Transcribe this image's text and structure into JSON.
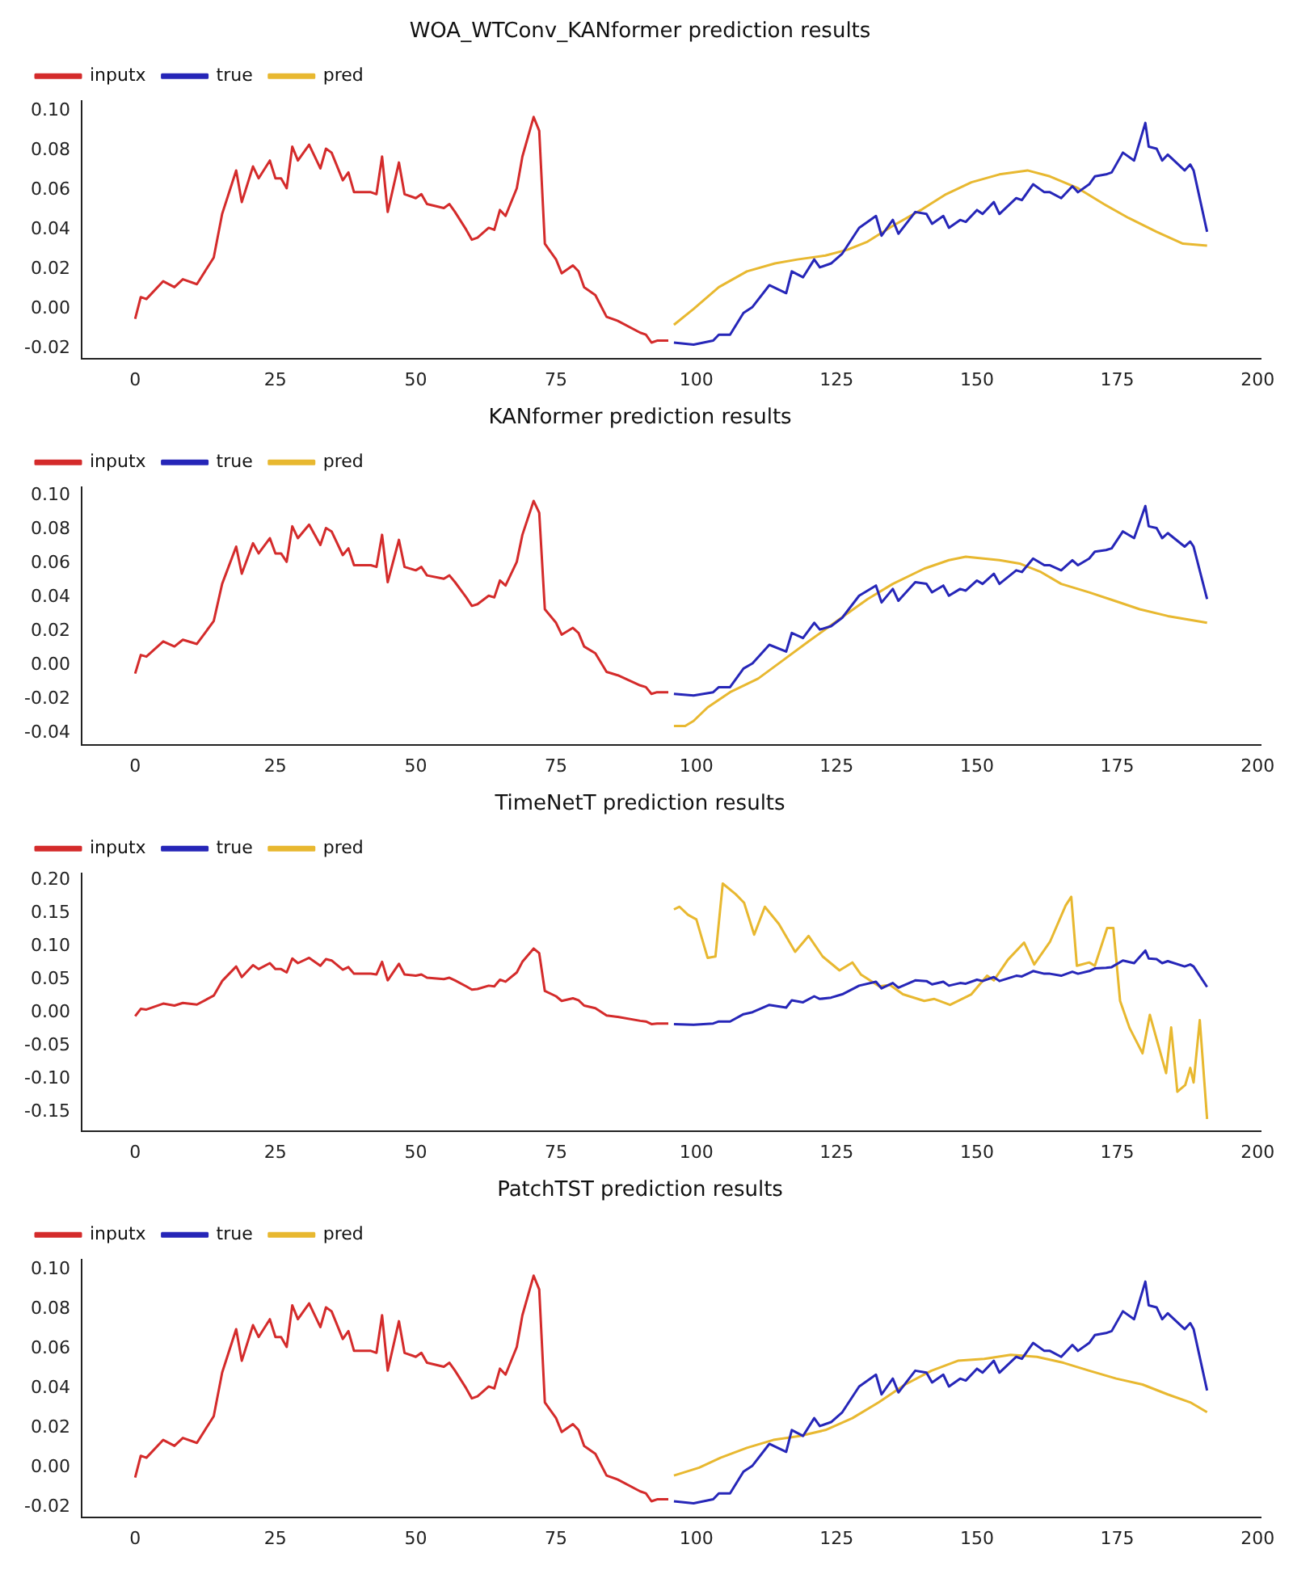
{
  "chart_data": [
    {
      "type": "line",
      "title": "WOA_WTConv_KANformer prediction results",
      "legend": "top left",
      "xlim": [
        -9.55,
        200.55
      ],
      "xticks": [
        0,
        25,
        50,
        75,
        100,
        125,
        150,
        175,
        200
      ],
      "ylim": [
        -0.025,
        0.105
      ],
      "yticks": [
        {
          "value": -0.02,
          "label": "-0.02"
        },
        {
          "value": 0,
          "label": "0.00"
        },
        {
          "value": 0.02,
          "label": "0.02"
        },
        {
          "value": 0.04,
          "label": "0.04"
        },
        {
          "value": 0.06,
          "label": "0.06"
        },
        {
          "value": 0.08,
          "label": "0.08"
        },
        {
          "value": 0.1,
          "label": "0.10"
        }
      ],
      "series": [
        {
          "name": "inputx",
          "color": "#d42b2b",
          "x": [
            0,
            1,
            2,
            5,
            7,
            8.5,
            11,
            14,
            15.5,
            18,
            19,
            21,
            22,
            24,
            25,
            26,
            27,
            28,
            29,
            31,
            33,
            34,
            35,
            37,
            38,
            39,
            42,
            43,
            44,
            45,
            47,
            48,
            50,
            51,
            52,
            55,
            56,
            57,
            59,
            60,
            61,
            63,
            64,
            65,
            66,
            68,
            69,
            71,
            72,
            73,
            75,
            76,
            78,
            79,
            80,
            82,
            84,
            86,
            90,
            91,
            92,
            93,
            95
          ],
          "values": [
            -0.005,
            0.006,
            0.005,
            0.014,
            0.011,
            0.015,
            0.0125,
            0.026,
            0.048,
            0.07,
            0.054,
            0.072,
            0.066,
            0.075,
            0.066,
            0.066,
            0.061,
            0.082,
            0.075,
            0.083,
            0.071,
            0.081,
            0.079,
            0.065,
            0.069,
            0.059,
            0.059,
            0.058,
            0.077,
            0.049,
            0.074,
            0.058,
            0.056,
            0.058,
            0.053,
            0.051,
            0.053,
            0.049,
            0.04,
            0.035,
            0.036,
            0.041,
            0.04,
            0.05,
            0.047,
            0.061,
            0.077,
            0.097,
            0.09,
            0.033,
            0.025,
            0.018,
            0.022,
            0.019,
            0.011,
            0.007,
            -0.004,
            -0.006,
            -0.012,
            -0.013,
            -0.017,
            -0.016,
            -0.016
          ]
        },
        {
          "name": "true",
          "color": "#2626b8",
          "x": [
            96,
            99.5,
            103,
            104,
            106,
            108.4,
            110,
            113,
            116,
            117,
            119,
            121,
            122,
            124,
            126,
            129,
            132,
            133,
            135,
            136,
            139,
            141,
            142,
            144,
            145,
            147,
            148,
            150,
            151,
            153,
            154,
            157,
            158,
            160,
            162,
            163,
            165,
            167,
            168,
            170,
            171,
            173,
            174,
            176,
            178,
            180,
            180.6,
            182,
            183,
            184,
            187,
            188,
            188.6,
            191
          ],
          "values": [
            -0.017,
            -0.018,
            -0.016,
            -0.013,
            -0.013,
            -0.002,
            0.001,
            0.012,
            0.008,
            0.019,
            0.016,
            0.025,
            0.021,
            0.023,
            0.028,
            0.041,
            0.047,
            0.037,
            0.045,
            0.038,
            0.049,
            0.048,
            0.043,
            0.047,
            0.041,
            0.045,
            0.044,
            0.05,
            0.048,
            0.054,
            0.048,
            0.056,
            0.055,
            0.063,
            0.059,
            0.059,
            0.056,
            0.062,
            0.059,
            0.063,
            0.067,
            0.068,
            0.069,
            0.079,
            0.075,
            0.094,
            0.082,
            0.081,
            0.075,
            0.078,
            0.07,
            0.073,
            0.07,
            0.039
          ]
        },
        {
          "name": "pred",
          "color": "#e8b830",
          "x": [
            96,
            99.5,
            104,
            109,
            114,
            118,
            123,
            127,
            130.5,
            135,
            140,
            144.5,
            149,
            154,
            159,
            163,
            168,
            172.6,
            177,
            182,
            186.7,
            191
          ],
          "values": [
            -0.008,
            0,
            0.011,
            0.019,
            0.023,
            0.025,
            0.027,
            0.03,
            0.034,
            0.042,
            0.05,
            0.058,
            0.064,
            0.068,
            0.07,
            0.067,
            0.061,
            0.053,
            0.046,
            0.039,
            0.033,
            0.032
          ]
        }
      ]
    },
    {
      "type": "line",
      "title": "KANformer prediction results",
      "legend": "top left",
      "xlim": [
        -9.55,
        200.55
      ],
      "xticks": [
        0,
        25,
        50,
        75,
        100,
        125,
        150,
        175,
        200
      ],
      "ylim": [
        -0.047,
        0.105
      ],
      "yticks": [
        {
          "value": -0.04,
          "label": "-0.04"
        },
        {
          "value": -0.02,
          "label": "-0.02"
        },
        {
          "value": 0,
          "label": "0.00"
        },
        {
          "value": 0.02,
          "label": "0.02"
        },
        {
          "value": 0.04,
          "label": "0.04"
        },
        {
          "value": 0.06,
          "label": "0.06"
        },
        {
          "value": 0.08,
          "label": "0.08"
        },
        {
          "value": 0.1,
          "label": "0.10"
        }
      ],
      "series": [
        {
          "name": "inputx",
          "color": "#d42b2b",
          "x": [
            0,
            1,
            2,
            5,
            7,
            8.5,
            11,
            14,
            15.5,
            18,
            19,
            21,
            22,
            24,
            25,
            26,
            27,
            28,
            29,
            31,
            33,
            34,
            35,
            37,
            38,
            39,
            42,
            43,
            44,
            45,
            47,
            48,
            50,
            51,
            52,
            55,
            56,
            57,
            59,
            60,
            61,
            63,
            64,
            65,
            66,
            68,
            69,
            71,
            72,
            73,
            75,
            76,
            78,
            79,
            80,
            82,
            84,
            86,
            90,
            91,
            92,
            93,
            95
          ],
          "values": [
            -0.005,
            0.006,
            0.005,
            0.014,
            0.011,
            0.015,
            0.0125,
            0.026,
            0.048,
            0.07,
            0.054,
            0.072,
            0.066,
            0.075,
            0.066,
            0.066,
            0.061,
            0.082,
            0.075,
            0.083,
            0.071,
            0.081,
            0.079,
            0.065,
            0.069,
            0.059,
            0.059,
            0.058,
            0.077,
            0.049,
            0.074,
            0.058,
            0.056,
            0.058,
            0.053,
            0.051,
            0.053,
            0.049,
            0.04,
            0.035,
            0.036,
            0.041,
            0.04,
            0.05,
            0.047,
            0.061,
            0.077,
            0.097,
            0.09,
            0.033,
            0.025,
            0.018,
            0.022,
            0.019,
            0.011,
            0.007,
            -0.004,
            -0.006,
            -0.012,
            -0.013,
            -0.017,
            -0.016,
            -0.016
          ]
        },
        {
          "name": "true",
          "color": "#2626b8",
          "x": [
            96,
            99.5,
            103,
            104,
            106,
            108.4,
            110,
            113,
            116,
            117,
            119,
            121,
            122,
            124,
            126,
            129,
            132,
            133,
            135,
            136,
            139,
            141,
            142,
            144,
            145,
            147,
            148,
            150,
            151,
            153,
            154,
            157,
            158,
            160,
            162,
            163,
            165,
            167,
            168,
            170,
            171,
            173,
            174,
            176,
            178,
            180,
            180.6,
            182,
            183,
            184,
            187,
            188,
            188.6,
            191
          ],
          "values": [
            -0.017,
            -0.018,
            -0.016,
            -0.013,
            -0.013,
            -0.002,
            0.001,
            0.012,
            0.008,
            0.019,
            0.016,
            0.025,
            0.021,
            0.023,
            0.028,
            0.041,
            0.047,
            0.037,
            0.045,
            0.038,
            0.049,
            0.048,
            0.043,
            0.047,
            0.041,
            0.045,
            0.044,
            0.05,
            0.048,
            0.054,
            0.048,
            0.056,
            0.055,
            0.063,
            0.059,
            0.059,
            0.056,
            0.062,
            0.059,
            0.063,
            0.067,
            0.068,
            0.069,
            0.079,
            0.075,
            0.094,
            0.082,
            0.081,
            0.075,
            0.078,
            0.07,
            0.073,
            0.07,
            0.039
          ]
        },
        {
          "name": "pred",
          "color": "#e8b830",
          "x": [
            96,
            98,
            99.5,
            102,
            106,
            111,
            115.5,
            120,
            125,
            130.5,
            135,
            140.6,
            145,
            148,
            154,
            157.6,
            161.4,
            165,
            170,
            174.5,
            179,
            184,
            191
          ],
          "values": [
            -0.036,
            -0.036,
            -0.033,
            -0.025,
            -0.016,
            -0.008,
            0.003,
            0.014,
            0.026,
            0.039,
            0.048,
            0.057,
            0.062,
            0.064,
            0.062,
            0.06,
            0.055,
            0.048,
            0.043,
            0.038,
            0.033,
            0.029,
            0.025
          ]
        }
      ]
    },
    {
      "type": "line",
      "title": "TimeNetT prediction results",
      "legend": "top left",
      "xlim": [
        -9.55,
        200.55
      ],
      "xticks": [
        0,
        25,
        50,
        75,
        100,
        125,
        150,
        175,
        200
      ],
      "ylim": [
        -0.178,
        0.21
      ],
      "yticks": [
        {
          "value": -0.15,
          "label": "-0.15"
        },
        {
          "value": -0.1,
          "label": "-0.10"
        },
        {
          "value": -0.05,
          "label": "-0.05"
        },
        {
          "value": 0,
          "label": "0.00"
        },
        {
          "value": 0.05,
          "label": "0.05"
        },
        {
          "value": 0.1,
          "label": "0.10"
        },
        {
          "value": 0.15,
          "label": "0.15"
        },
        {
          "value": 0.2,
          "label": "0.20"
        }
      ],
      "series": [
        {
          "name": "inputx",
          "color": "#d42b2b",
          "x": [
            0,
            1,
            2,
            5,
            7,
            8.5,
            11,
            14,
            15.5,
            18,
            19,
            21,
            22,
            24,
            25,
            26,
            27,
            28,
            29,
            31,
            33,
            34,
            35,
            37,
            38,
            39,
            42,
            43,
            44,
            45,
            47,
            48,
            50,
            51,
            52,
            55,
            56,
            57,
            59,
            60,
            61,
            63,
            64,
            65,
            66,
            68,
            69,
            71,
            72,
            73,
            75,
            76,
            78,
            79,
            80,
            82,
            84,
            86,
            90,
            91,
            92,
            93,
            95
          ],
          "values": [
            -0.005,
            0.006,
            0.005,
            0.014,
            0.011,
            0.015,
            0.0125,
            0.026,
            0.048,
            0.07,
            0.054,
            0.072,
            0.066,
            0.075,
            0.066,
            0.066,
            0.061,
            0.082,
            0.075,
            0.083,
            0.071,
            0.081,
            0.079,
            0.065,
            0.069,
            0.059,
            0.059,
            0.058,
            0.077,
            0.049,
            0.074,
            0.058,
            0.056,
            0.058,
            0.053,
            0.051,
            0.053,
            0.049,
            0.04,
            0.035,
            0.036,
            0.041,
            0.04,
            0.05,
            0.047,
            0.061,
            0.077,
            0.097,
            0.09,
            0.033,
            0.025,
            0.018,
            0.022,
            0.019,
            0.011,
            0.007,
            -0.004,
            -0.006,
            -0.012,
            -0.013,
            -0.017,
            -0.016,
            -0.016
          ]
        },
        {
          "name": "true",
          "color": "#2626b8",
          "x": [
            96,
            99.5,
            103,
            104,
            106,
            108.4,
            110,
            113,
            116,
            117,
            119,
            121,
            122,
            124,
            126,
            129,
            132,
            133,
            135,
            136,
            139,
            141,
            142,
            144,
            145,
            147,
            148,
            150,
            151,
            153,
            154,
            157,
            158,
            160,
            162,
            163,
            165,
            167,
            168,
            170,
            171,
            173,
            174,
            176,
            178,
            180,
            180.6,
            182,
            183,
            184,
            187,
            188,
            188.6,
            191
          ],
          "values": [
            -0.017,
            -0.018,
            -0.016,
            -0.013,
            -0.013,
            -0.002,
            0.001,
            0.012,
            0.008,
            0.019,
            0.016,
            0.025,
            0.021,
            0.023,
            0.028,
            0.041,
            0.047,
            0.037,
            0.045,
            0.038,
            0.049,
            0.048,
            0.043,
            0.047,
            0.041,
            0.045,
            0.044,
            0.05,
            0.048,
            0.054,
            0.048,
            0.056,
            0.055,
            0.063,
            0.059,
            0.059,
            0.056,
            0.062,
            0.059,
            0.063,
            0.067,
            0.068,
            0.069,
            0.079,
            0.075,
            0.094,
            0.082,
            0.081,
            0.075,
            0.078,
            0.07,
            0.073,
            0.07,
            0.039
          ]
        },
        {
          "name": "pred",
          "color": "#e8b830",
          "x": [
            96,
            97,
            98.5,
            100,
            102,
            103.4,
            104.7,
            107,
            108.5,
            110.3,
            112.2,
            114.7,
            117.6,
            120,
            122.5,
            125.5,
            127.8,
            129.3,
            132.6,
            134.5,
            136.8,
            140.6,
            142.4,
            145.2,
            149,
            151.8,
            153,
            155.5,
            158.4,
            160.2,
            163,
            165.8,
            166.8,
            167.8,
            170,
            171,
            173.2,
            174.3,
            175.5,
            177.2,
            179.5,
            180.8,
            183.7,
            184.6,
            185.7,
            187.1,
            188,
            188.6,
            189.7,
            191
          ],
          "values": [
            0.156,
            0.16,
            0.148,
            0.141,
            0.083,
            0.085,
            0.195,
            0.179,
            0.166,
            0.118,
            0.16,
            0.134,
            0.092,
            0.116,
            0.085,
            0.064,
            0.076,
            0.058,
            0.04,
            0.042,
            0.028,
            0.018,
            0.021,
            0.012,
            0.028,
            0.056,
            0.049,
            0.08,
            0.106,
            0.073,
            0.107,
            0.162,
            0.175,
            0.071,
            0.076,
            0.071,
            0.128,
            0.128,
            0.018,
            -0.023,
            -0.061,
            -0.003,
            -0.091,
            -0.022,
            -0.119,
            -0.109,
            -0.083,
            -0.105,
            -0.011,
            -0.16
          ]
        }
      ]
    },
    {
      "type": "line",
      "title": "PatchTST prediction results",
      "legend": "top left",
      "xlim": [
        -9.55,
        200.55
      ],
      "xticks": [
        0,
        25,
        50,
        75,
        100,
        125,
        150,
        175,
        200
      ],
      "ylim": [
        -0.025,
        0.105
      ],
      "yticks": [
        {
          "value": -0.02,
          "label": "-0.02"
        },
        {
          "value": 0,
          "label": "0.00"
        },
        {
          "value": 0.02,
          "label": "0.02"
        },
        {
          "value": 0.04,
          "label": "0.04"
        },
        {
          "value": 0.06,
          "label": "0.06"
        },
        {
          "value": 0.08,
          "label": "0.08"
        },
        {
          "value": 0.1,
          "label": "0.10"
        }
      ],
      "series": [
        {
          "name": "inputx",
          "color": "#d42b2b",
          "x": [
            0,
            1,
            2,
            5,
            7,
            8.5,
            11,
            14,
            15.5,
            18,
            19,
            21,
            22,
            24,
            25,
            26,
            27,
            28,
            29,
            31,
            33,
            34,
            35,
            37,
            38,
            39,
            42,
            43,
            44,
            45,
            47,
            48,
            50,
            51,
            52,
            55,
            56,
            57,
            59,
            60,
            61,
            63,
            64,
            65,
            66,
            68,
            69,
            71,
            72,
            73,
            75,
            76,
            78,
            79,
            80,
            82,
            84,
            86,
            90,
            91,
            92,
            93,
            95
          ],
          "values": [
            -0.005,
            0.006,
            0.005,
            0.014,
            0.011,
            0.015,
            0.0125,
            0.026,
            0.048,
            0.07,
            0.054,
            0.072,
            0.066,
            0.075,
            0.066,
            0.066,
            0.061,
            0.082,
            0.075,
            0.083,
            0.071,
            0.081,
            0.079,
            0.065,
            0.069,
            0.059,
            0.059,
            0.058,
            0.077,
            0.049,
            0.074,
            0.058,
            0.056,
            0.058,
            0.053,
            0.051,
            0.053,
            0.049,
            0.04,
            0.035,
            0.036,
            0.041,
            0.04,
            0.05,
            0.047,
            0.061,
            0.077,
            0.097,
            0.09,
            0.033,
            0.025,
            0.018,
            0.022,
            0.019,
            0.011,
            0.007,
            -0.004,
            -0.006,
            -0.012,
            -0.013,
            -0.017,
            -0.016,
            -0.016
          ]
        },
        {
          "name": "true",
          "color": "#2626b8",
          "x": [
            96,
            99.5,
            103,
            104,
            106,
            108.4,
            110,
            113,
            116,
            117,
            119,
            121,
            122,
            124,
            126,
            129,
            132,
            133,
            135,
            136,
            139,
            141,
            142,
            144,
            145,
            147,
            148,
            150,
            151,
            153,
            154,
            157,
            158,
            160,
            162,
            163,
            165,
            167,
            168,
            170,
            171,
            173,
            174,
            176,
            178,
            180,
            180.6,
            182,
            183,
            184,
            187,
            188,
            188.6,
            191
          ],
          "values": [
            -0.017,
            -0.018,
            -0.016,
            -0.013,
            -0.013,
            -0.002,
            0.001,
            0.012,
            0.008,
            0.019,
            0.016,
            0.025,
            0.021,
            0.023,
            0.028,
            0.041,
            0.047,
            0.037,
            0.045,
            0.038,
            0.049,
            0.048,
            0.043,
            0.047,
            0.041,
            0.045,
            0.044,
            0.05,
            0.048,
            0.054,
            0.048,
            0.056,
            0.055,
            0.063,
            0.059,
            0.059,
            0.056,
            0.062,
            0.059,
            0.063,
            0.067,
            0.068,
            0.069,
            0.079,
            0.075,
            0.094,
            0.082,
            0.081,
            0.075,
            0.078,
            0.07,
            0.073,
            0.07,
            0.039
          ]
        },
        {
          "name": "pred",
          "color": "#e8b830",
          "x": [
            96,
            100.5,
            104.3,
            109,
            113.7,
            118.4,
            123,
            127.8,
            132.5,
            137.2,
            141.9,
            146.6,
            151.3,
            156,
            160.7,
            165.4,
            170,
            174.8,
            179.5,
            184,
            188,
            191
          ],
          "values": [
            -0.004,
            0,
            0.005,
            0.01,
            0.014,
            0.016,
            0.019,
            0.025,
            0.033,
            0.042,
            0.049,
            0.054,
            0.055,
            0.057,
            0.056,
            0.053,
            0.049,
            0.045,
            0.042,
            0.037,
            0.033,
            0.028
          ]
        }
      ]
    }
  ]
}
